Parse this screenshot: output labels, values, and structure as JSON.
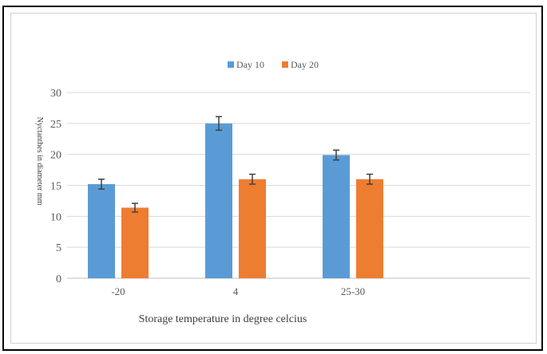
{
  "chart_data": {
    "type": "bar",
    "categories": [
      "-20",
      "4",
      "25-30"
    ],
    "series": [
      {
        "name": "Day 10",
        "values": [
          15.2,
          25.0,
          19.9
        ],
        "errors": [
          0.8,
          1.1,
          0.8
        ],
        "color": "#5b9bd5"
      },
      {
        "name": "Day 20",
        "values": [
          11.4,
          16.0,
          16.0
        ],
        "errors": [
          0.7,
          0.8,
          0.8
        ],
        "color": "#ed7d31"
      }
    ],
    "xlabel": "Storage temperature in degree celcius",
    "ylabel": "Nyctanthes in diameter mm",
    "ylim": [
      0,
      30
    ],
    "yticks": [
      "0",
      "5",
      "10",
      "15",
      "20",
      "25",
      "30"
    ],
    "grid": true,
    "legend_position": "top"
  }
}
